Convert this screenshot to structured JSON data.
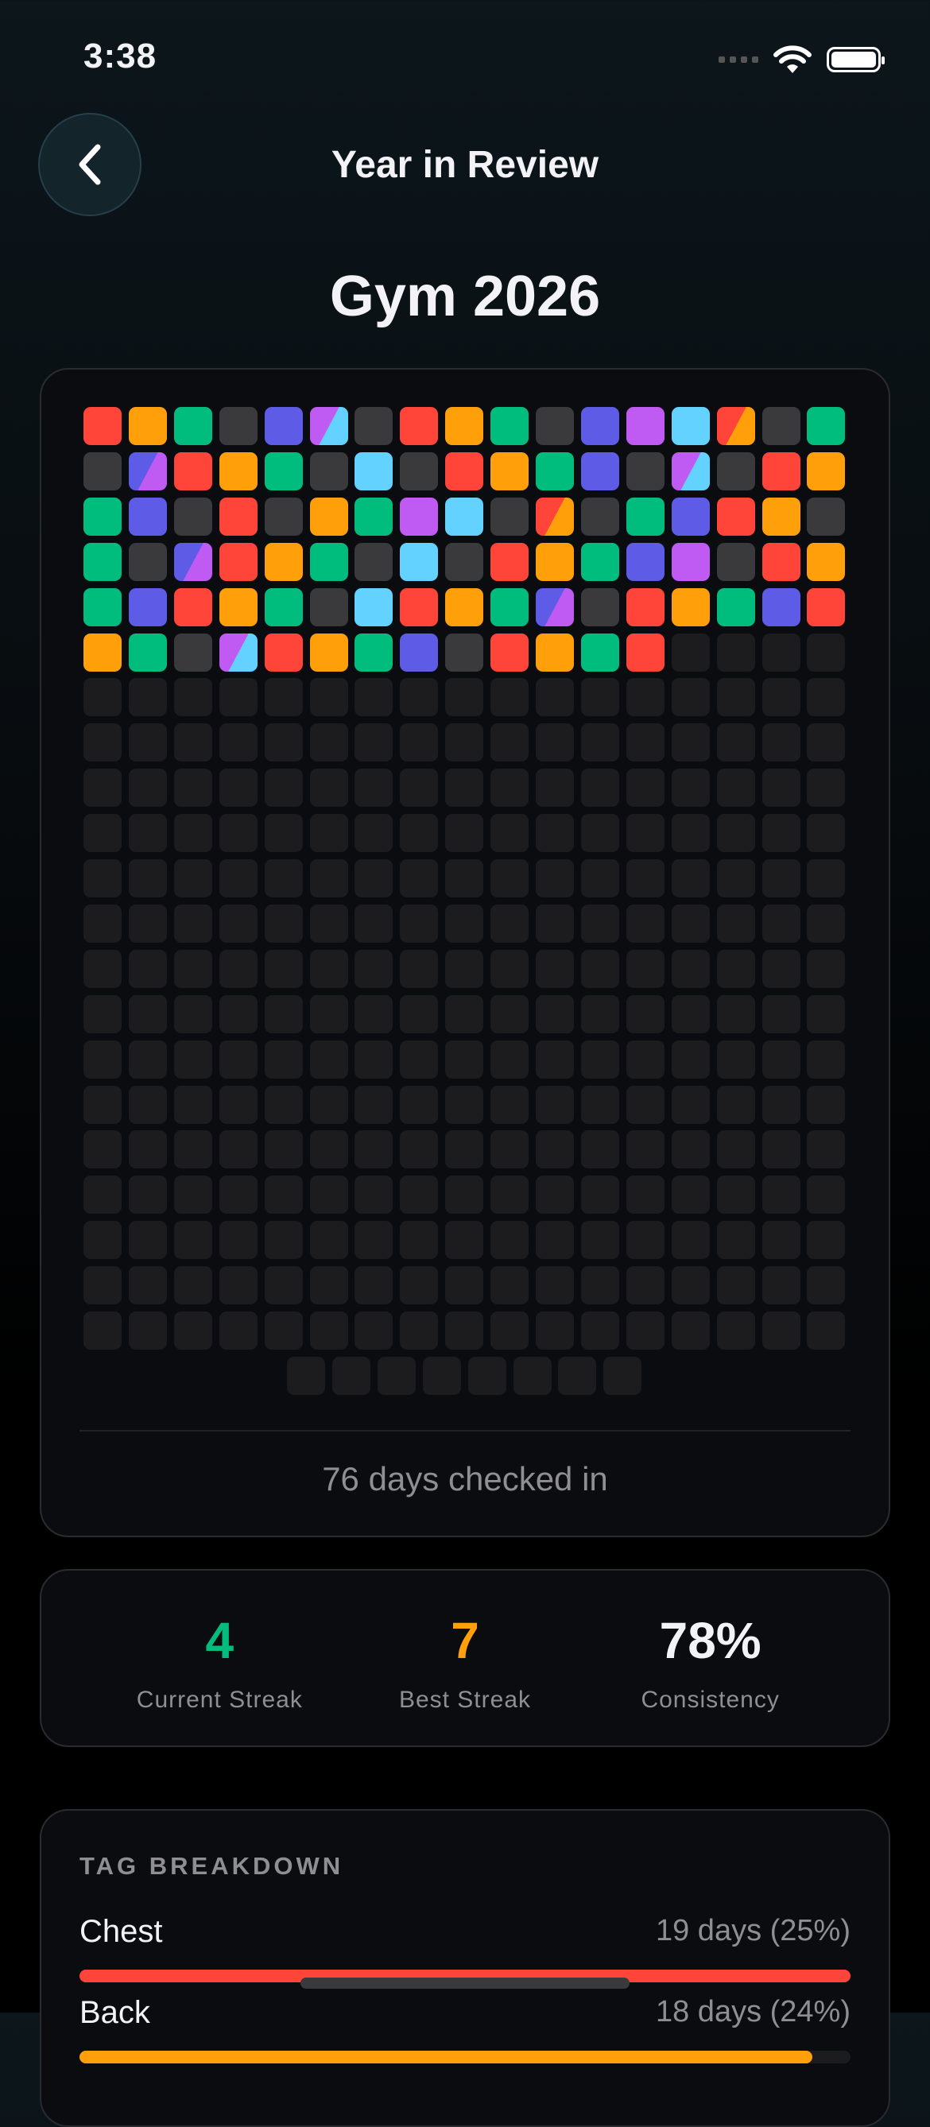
{
  "status_bar": {
    "time": "3:38"
  },
  "header": {
    "title": "Year in Review",
    "back_icon": "chevron-left-icon"
  },
  "page_title": "Gym 2026",
  "colors": {
    "R": "#ff453a",
    "O": "#ff9f0a",
    "G": "#00bd7e",
    "B": "#5e5ce6",
    "P": "#bf5af2",
    "C": "#64d2ff",
    "X": "#3a3a3c",
    "empty": "#1c1c1e"
  },
  "grid": {
    "total_days": 365,
    "days": [
      "R",
      "O",
      "G",
      "X",
      "B",
      "P/C",
      "X",
      "R",
      "O",
      "G",
      "X",
      "B",
      "P",
      "C",
      "R/O",
      "X",
      "G",
      "X",
      "B/P",
      "R",
      "O",
      "G",
      "X",
      "C",
      "X",
      "R",
      "O",
      "G",
      "B",
      "X",
      "P/C",
      "X",
      "R",
      "O",
      "G",
      "B",
      "X",
      "R",
      "X",
      "O",
      "G",
      "P",
      "C",
      "X",
      "R/O",
      "X",
      "G",
      "B",
      "R",
      "O",
      "X",
      "G",
      "X",
      "B/P",
      "R",
      "O",
      "G",
      "X",
      "C",
      "X",
      "R",
      "O",
      "G",
      "B",
      "P",
      "X",
      "R",
      "O",
      "G",
      "B",
      "R",
      "O",
      "G",
      "X",
      "C",
      "R",
      "O",
      "G",
      "B/P",
      "X",
      "R",
      "O",
      "G",
      "B",
      "R",
      "O",
      "G",
      "X",
      "P/C",
      "R",
      "O",
      "G",
      "B",
      "X",
      "R",
      "O",
      "G",
      "R"
    ],
    "summary": "76 days checked in"
  },
  "stats": [
    {
      "value": "4",
      "label": "Current Streak",
      "color": "#00bd7e"
    },
    {
      "value": "7",
      "label": "Best Streak",
      "color": "#ff9f0a"
    },
    {
      "value": "78%",
      "label": "Consistency",
      "color": "#f2f2f7"
    }
  ],
  "tag_breakdown": {
    "heading": "TAG BREAKDOWN",
    "tags": [
      {
        "name": "Chest",
        "count": "19 days (25%)",
        "fraction": 1.0,
        "color": "#ff453a"
      },
      {
        "name": "Back",
        "count": "18 days (24%)",
        "fraction": 0.95,
        "color": "#ff9f0a"
      }
    ]
  }
}
